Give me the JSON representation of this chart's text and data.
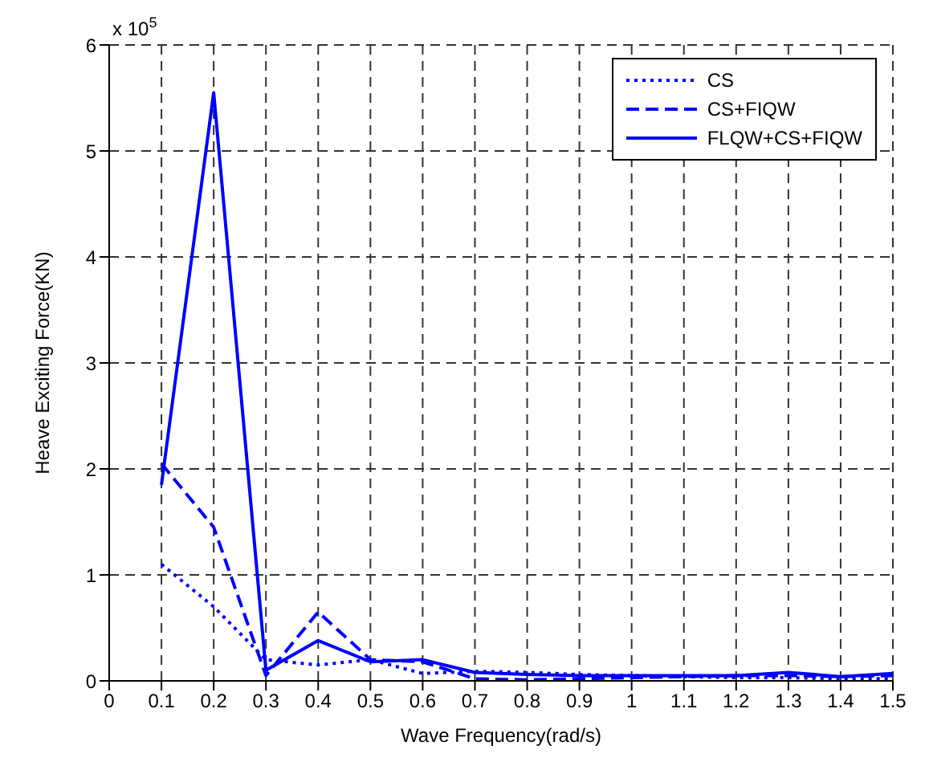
{
  "chart_data": {
    "type": "line",
    "xlabel": "Wave Frequency(rad/s)",
    "ylabel": "Heave Exciting Force(KN)",
    "annotations": [
      "x 10$^{5}$"
    ],
    "x": [
      0.1,
      0.2,
      0.3,
      0.4,
      0.5,
      0.6,
      0.7,
      0.8,
      0.9,
      1.0,
      1.1,
      1.2,
      1.3,
      1.4,
      1.5
    ],
    "series": [
      {
        "name": "CS",
        "color": "#0000ff",
        "line_style": "dotted",
        "values": [
          1.1,
          0.7,
          0.2,
          0.15,
          0.2,
          0.07,
          0.09,
          0.08,
          0.06,
          0.05,
          0.04,
          0.03,
          0.03,
          0.02,
          0.02
        ]
      },
      {
        "name": "CS+FIQW",
        "color": "#0000ff",
        "line_style": "dashed",
        "values": [
          2.05,
          1.45,
          0.05,
          0.65,
          0.2,
          0.18,
          0.02,
          0.01,
          0.02,
          0.03,
          0.04,
          0.05,
          0.05,
          0.04,
          0.05
        ]
      },
      {
        "name": "FLQW+CS+FIQW",
        "color": "#0000ff",
        "line_style": "solid",
        "values": [
          1.85,
          5.55,
          0.1,
          0.38,
          0.18,
          0.2,
          0.08,
          0.06,
          0.05,
          0.05,
          0.05,
          0.05,
          0.08,
          0.04,
          0.07
        ]
      }
    ],
    "xlim": [
      0,
      1.5
    ],
    "xticks": [
      0,
      0.1,
      0.2,
      0.3,
      0.4,
      0.5,
      0.6,
      0.7,
      0.8,
      0.9,
      1,
      1.1,
      1.2,
      1.3,
      1.4,
      1.5
    ],
    "ylim": [
      0,
      6
    ],
    "yticks": [
      0,
      1,
      2,
      3,
      4,
      5,
      6
    ],
    "grid": true,
    "legend": "top right",
    "marker": "none"
  }
}
